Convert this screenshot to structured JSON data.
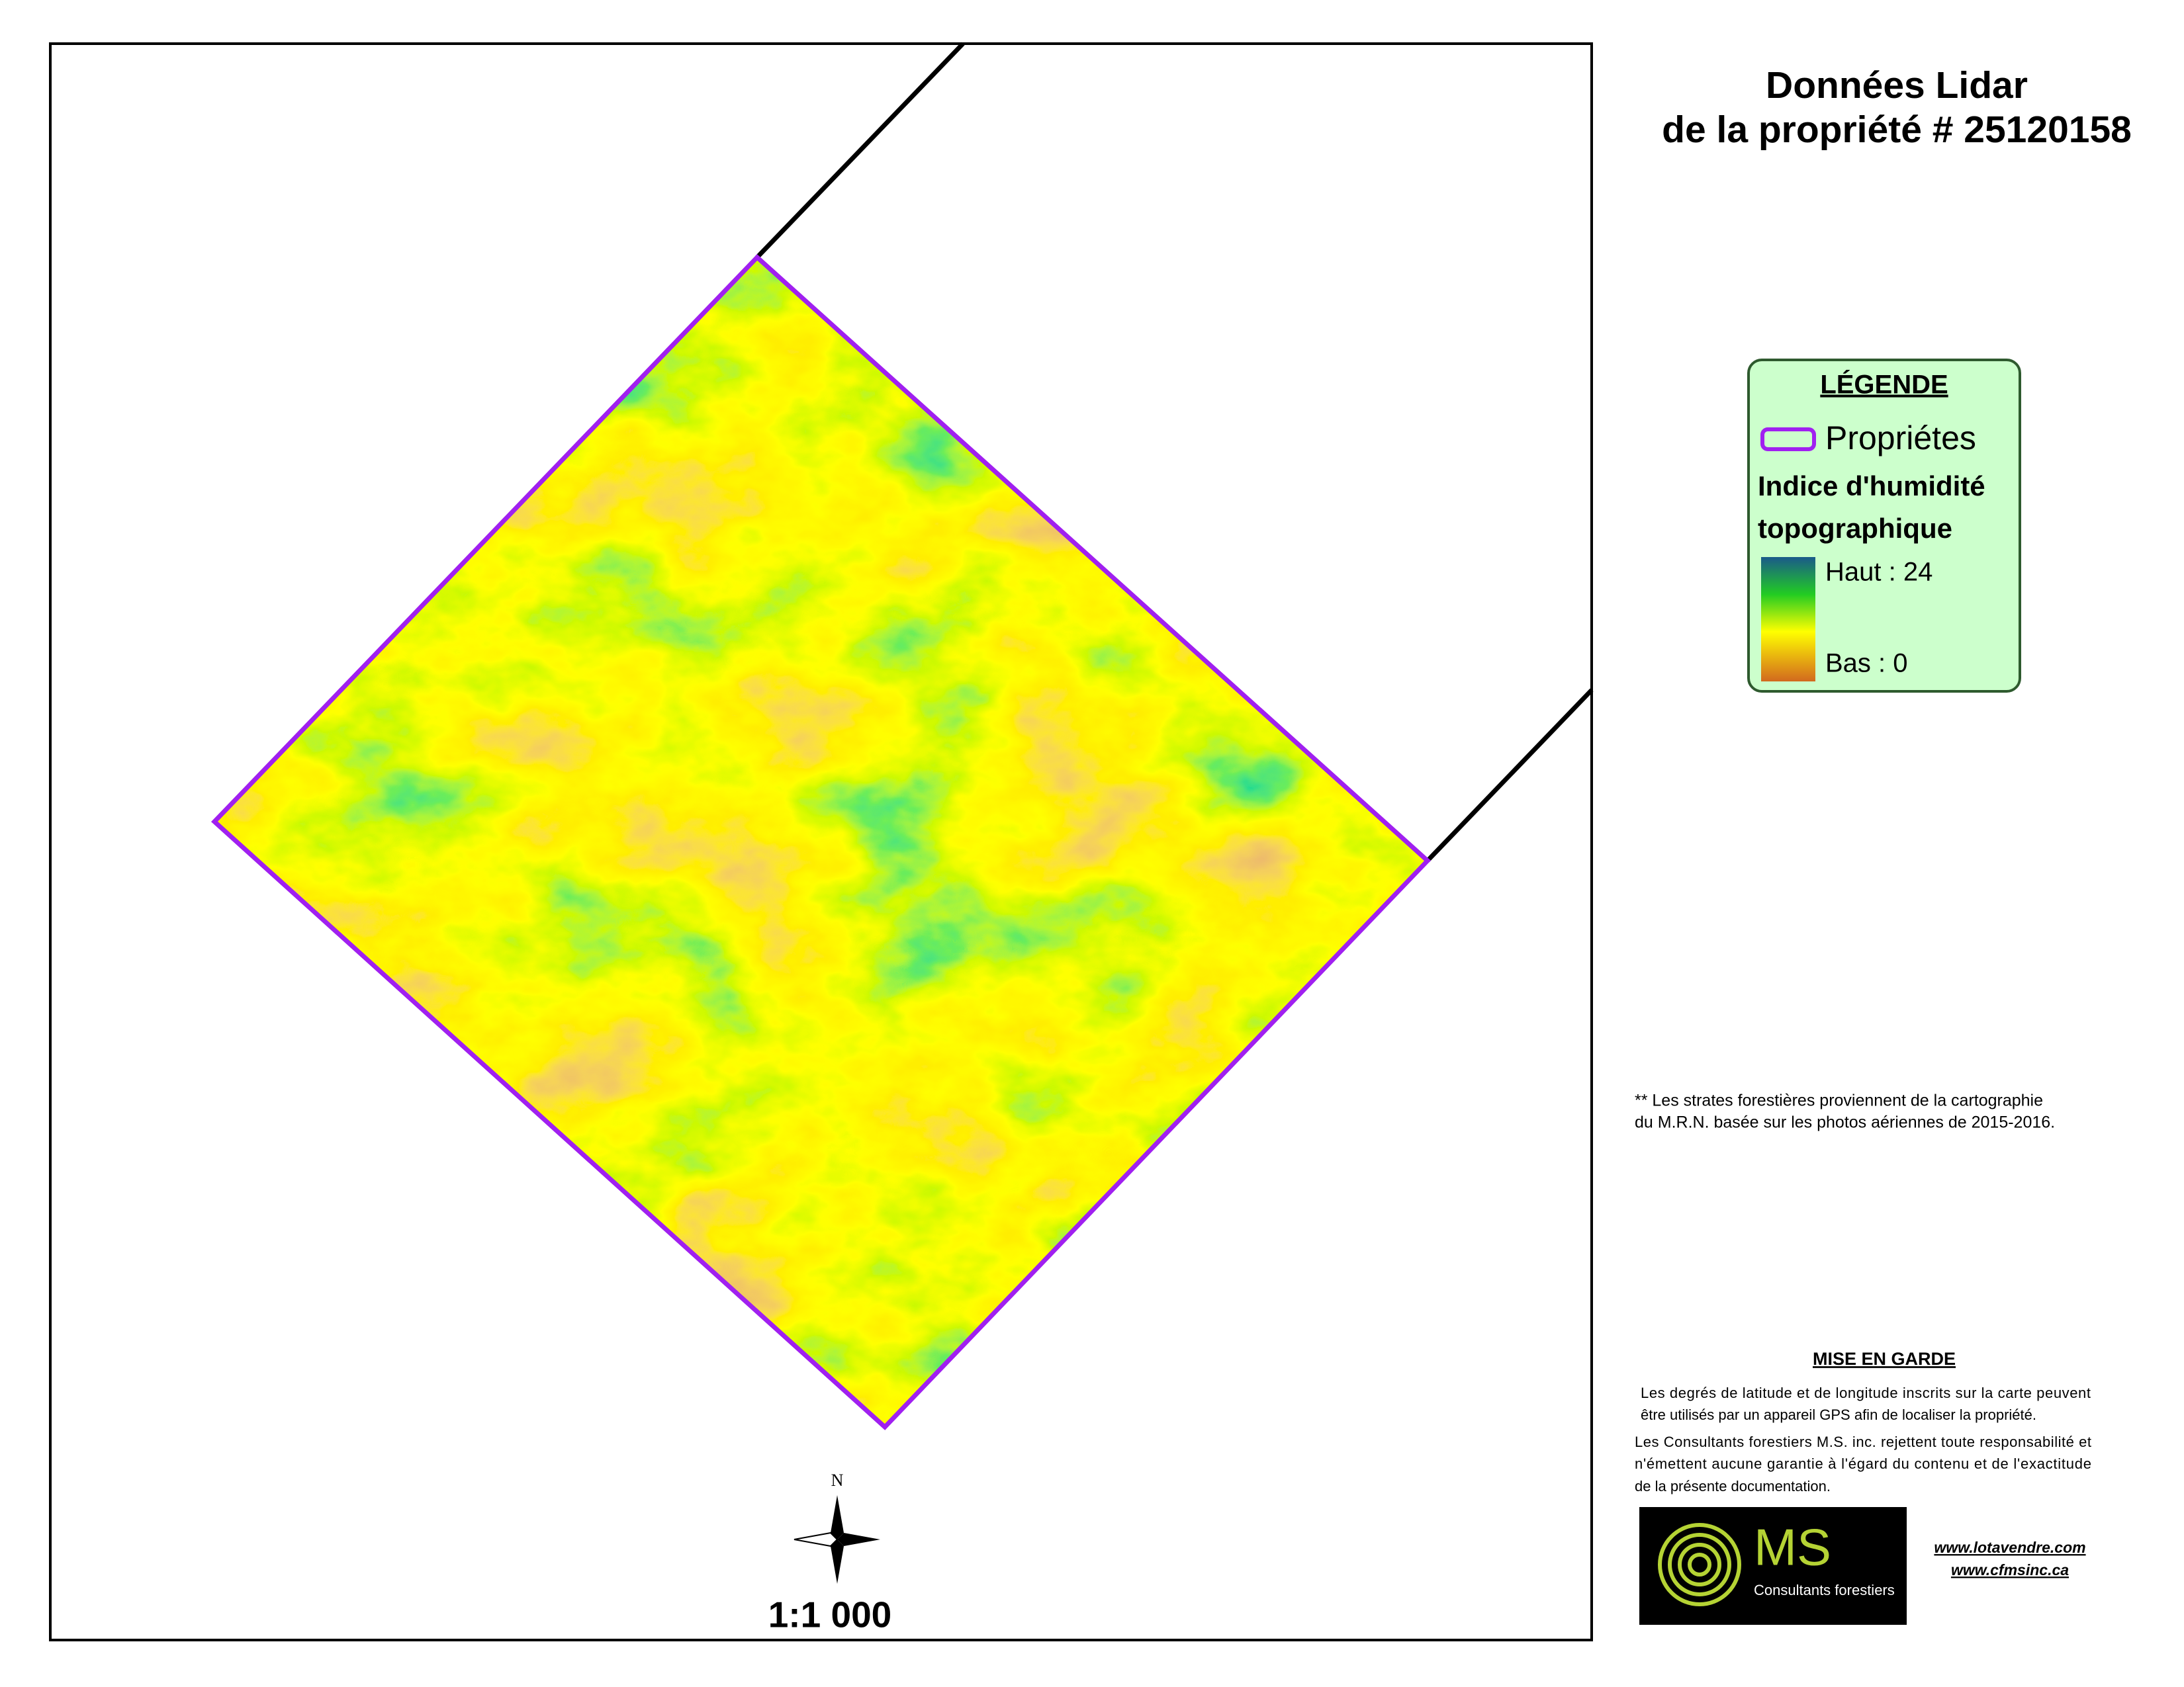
{
  "header": {
    "title": [
      "Données Lidar",
      "de la propriété # 25120158"
    ]
  },
  "legend": {
    "title": "LÉGENDE",
    "boundary": "Propriétes",
    "layer": [
      "Indice d'humidité",
      "topographique"
    ],
    "high": "Haut : 24",
    "low": "Bas : 0"
  },
  "note": [
    "** Les strates forestières proviennent de la cartographie",
    "du M.R.N.  basée sur les photos aériennes  de 2015-2016."
  ],
  "warning": {
    "title": "MISE EN GARDE",
    "lines": [
      "Les degrés de latitude et de longitude inscrits sur la carte peuvent",
      "être utilisés par un appareil GPS afin de localiser la propriété.",
      "Les Consultants forestiers M.S. inc. rejettent toute responsabilité et",
      "n'émettent aucune garantie à l'égard du contenu et de l'exactitude",
      "de la présente documentation."
    ]
  },
  "logo": {
    "mark": "MS",
    "name": "Consultants forestiers"
  },
  "links": [
    "www.lotavendre.com",
    "www.cfmsinc.ca"
  ],
  "map": {
    "north": "N",
    "scale": "1:1 000"
  }
}
